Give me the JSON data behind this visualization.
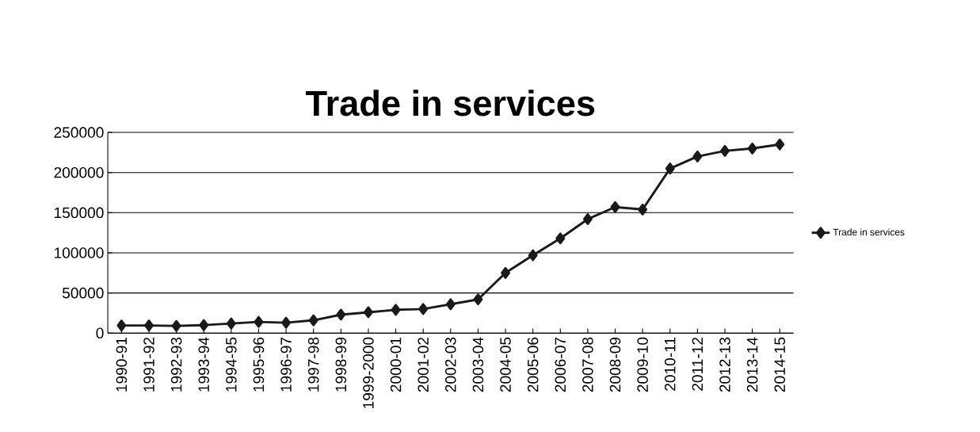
{
  "chart_data": {
    "type": "line",
    "title": "Trade in services",
    "categories": [
      "1990-91",
      "1991-92",
      "1992-93",
      "1993-94",
      "1994-95",
      "1995-96",
      "1996-97",
      "1997-98",
      "1998-99",
      "1999-2000",
      "2000-01",
      "2001-02",
      "2002-03",
      "2003-04",
      "2004-05",
      "2005-06",
      "2006-07",
      "2007-08",
      "2008-09",
      "2009-10",
      "2010-11",
      "2011-12",
      "2012-13",
      "2013-14",
      "2014-15"
    ],
    "series": [
      {
        "name": "Trade in services",
        "color": "#1a1a1a",
        "values": [
          9500,
          9500,
          9000,
          10000,
          12000,
          14000,
          13000,
          16000,
          23000,
          26000,
          29000,
          30000,
          36000,
          42000,
          75000,
          97000,
          118000,
          142000,
          157000,
          154000,
          205000,
          220000,
          227000,
          230000,
          235000
        ]
      }
    ],
    "ylim": [
      0,
      250000
    ],
    "yticks": [
      0,
      50000,
      100000,
      150000,
      200000,
      250000
    ],
    "grid": "y",
    "legend": "right",
    "marker": "diamond",
    "line_style": "solid"
  }
}
